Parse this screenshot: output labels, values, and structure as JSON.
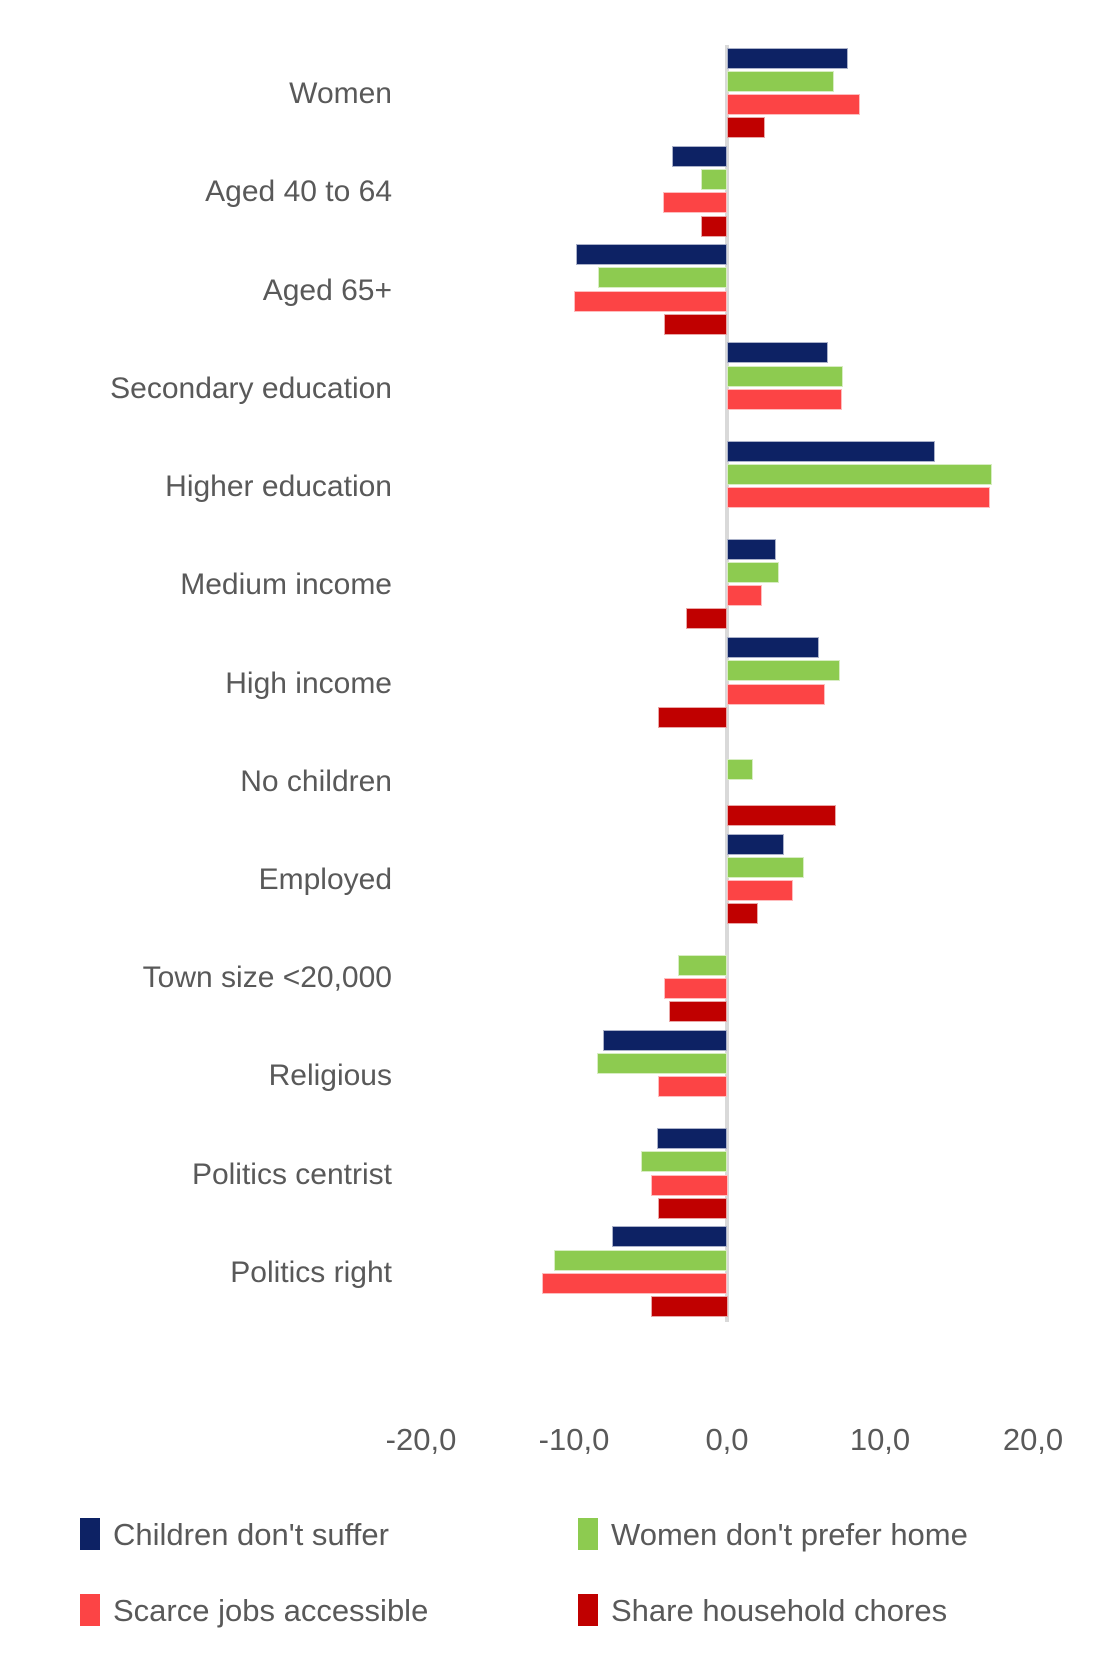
{
  "chart_data": {
    "type": "bar",
    "orientation": "horizontal",
    "title": "",
    "xlabel": "",
    "ylabel": "",
    "xlim": [
      -20,
      20
    ],
    "gridlines": false,
    "legend_position": "bottom",
    "decimal_style": "comma",
    "categories": [
      "Women",
      "Aged 40 to 64",
      "Aged 65+",
      "Secondary education",
      "Higher education",
      "Medium income",
      "High income",
      "No children",
      "Employed",
      "Town size <20,000",
      "Religious",
      "Politics centrist",
      "Politics right"
    ],
    "series": [
      {
        "name": "Children don't suffer",
        "color": "#0d2264",
        "values": [
          7.9,
          -3.6,
          -9.9,
          6.6,
          13.6,
          3.2,
          6.0,
          0,
          3.7,
          0,
          -8.1,
          -4.6,
          -7.5
        ]
      },
      {
        "name": "Women don't prefer home",
        "color": "#8dcb50",
        "values": [
          7.0,
          -1.7,
          -8.4,
          7.6,
          17.3,
          3.4,
          7.4,
          1.7,
          5.0,
          -3.2,
          -8.5,
          -5.6,
          -11.3
        ]
      },
      {
        "name": "Scarce jobs accessible",
        "color": "#fc4445",
        "values": [
          8.7,
          -4.2,
          -10.0,
          7.5,
          17.2,
          2.3,
          6.4,
          0,
          4.3,
          -4.1,
          -4.5,
          -5.0,
          -12.1
        ]
      },
      {
        "name": "Share household chores",
        "color": "#c00000",
        "values": [
          2.5,
          -1.7,
          -4.1,
          0,
          0,
          -2.7,
          -4.5,
          7.1,
          2.0,
          -3.8,
          0,
          -4.5,
          -5.0
        ]
      }
    ],
    "x_ticks": [
      {
        "value": -20,
        "label": "-20,0"
      },
      {
        "value": -10,
        "label": "-10,0"
      },
      {
        "value": 0,
        "label": "0,0"
      },
      {
        "value": 10,
        "label": "10,0"
      },
      {
        "value": 20,
        "label": "20,0"
      }
    ]
  },
  "style": {
    "axis_line_color": "#d9d9d9",
    "text_color": "#595959",
    "background": "#ffffff"
  }
}
